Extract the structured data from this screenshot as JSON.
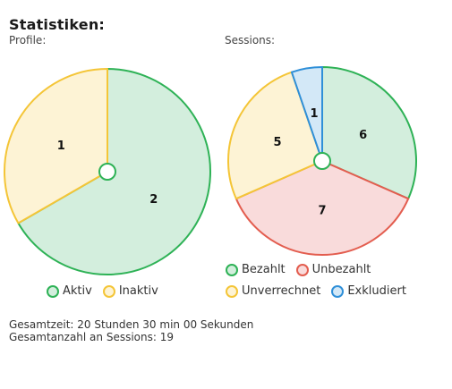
{
  "header": {
    "title": "Statistiken:"
  },
  "profiles": {
    "label": "Profile:",
    "legend": [
      {
        "label": "Aktiv",
        "fill": "#d3eedd",
        "stroke": "#2eb256"
      },
      {
        "label": "Inaktiv",
        "fill": "#fdf3d5",
        "stroke": "#f4c537"
      }
    ]
  },
  "sessions": {
    "label": "Sessions:",
    "legend": [
      {
        "label": "Bezahlt",
        "fill": "#d3eedd",
        "stroke": "#2eb256"
      },
      {
        "label": "Unbezahlt",
        "fill": "#f9dbdb",
        "stroke": "#e35d4f"
      },
      {
        "label": "Unverrechnet",
        "fill": "#fdf3d5",
        "stroke": "#f4c537"
      },
      {
        "label": "Exkludiert",
        "fill": "#d3e8f7",
        "stroke": "#2f8fd8"
      }
    ]
  },
  "chart_data": [
    {
      "type": "pie",
      "slices": [
        {
          "label": "Aktiv",
          "value": 2
        },
        {
          "label": "Inaktiv",
          "value": 1
        }
      ]
    },
    {
      "type": "pie",
      "slices": [
        {
          "label": "Bezahlt",
          "value": 6
        },
        {
          "label": "Unbezahlt",
          "value": 7
        },
        {
          "label": "Unverrechnet",
          "value": 5
        },
        {
          "label": "Exkludiert",
          "value": 1
        }
      ]
    }
  ],
  "footer": {
    "total_time": "Gesamtzeit: 20 Stunden 30 min 00 Sekunden",
    "total_sessions": "Gesamtanzahl an Sessions: 19"
  }
}
